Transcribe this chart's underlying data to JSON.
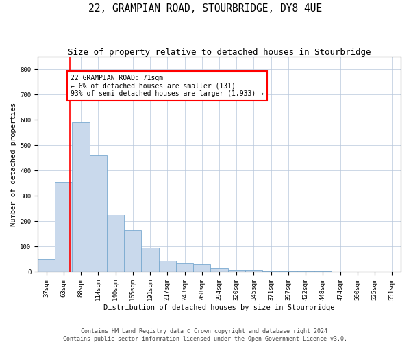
{
  "title": "22, GRAMPIAN ROAD, STOURBRIDGE, DY8 4UE",
  "subtitle": "Size of property relative to detached houses in Stourbridge",
  "xlabel": "Distribution of detached houses by size in Stourbridge",
  "ylabel": "Number of detached properties",
  "categories": [
    "37sqm",
    "63sqm",
    "88sqm",
    "114sqm",
    "140sqm",
    "165sqm",
    "191sqm",
    "217sqm",
    "243sqm",
    "268sqm",
    "294sqm",
    "320sqm",
    "345sqm",
    "371sqm",
    "397sqm",
    "422sqm",
    "448sqm",
    "474sqm",
    "500sqm",
    "525sqm",
    "551sqm"
  ],
  "values": [
    50,
    355,
    590,
    460,
    225,
    165,
    95,
    45,
    35,
    30,
    15,
    8,
    8,
    5,
    4,
    3,
    3,
    2,
    2,
    2,
    2
  ],
  "bar_color": "#c9d9ec",
  "bar_edgecolor": "#7aaad0",
  "property_line_x": 1.35,
  "annotation_text": "22 GRAMPIAN ROAD: 71sqm\n← 6% of detached houses are smaller (131)\n93% of semi-detached houses are larger (1,933) →",
  "annotation_box_color": "white",
  "annotation_box_edgecolor": "red",
  "vline_color": "red",
  "ylim": [
    0,
    850
  ],
  "yticks": [
    0,
    100,
    200,
    300,
    400,
    500,
    600,
    700,
    800
  ],
  "footer_line1": "Contains HM Land Registry data © Crown copyright and database right 2024.",
  "footer_line2": "Contains public sector information licensed under the Open Government Licence v3.0.",
  "title_fontsize": 10.5,
  "subtitle_fontsize": 9,
  "axis_label_fontsize": 7.5,
  "tick_fontsize": 6.5,
  "annotation_fontsize": 7,
  "footer_fontsize": 6
}
